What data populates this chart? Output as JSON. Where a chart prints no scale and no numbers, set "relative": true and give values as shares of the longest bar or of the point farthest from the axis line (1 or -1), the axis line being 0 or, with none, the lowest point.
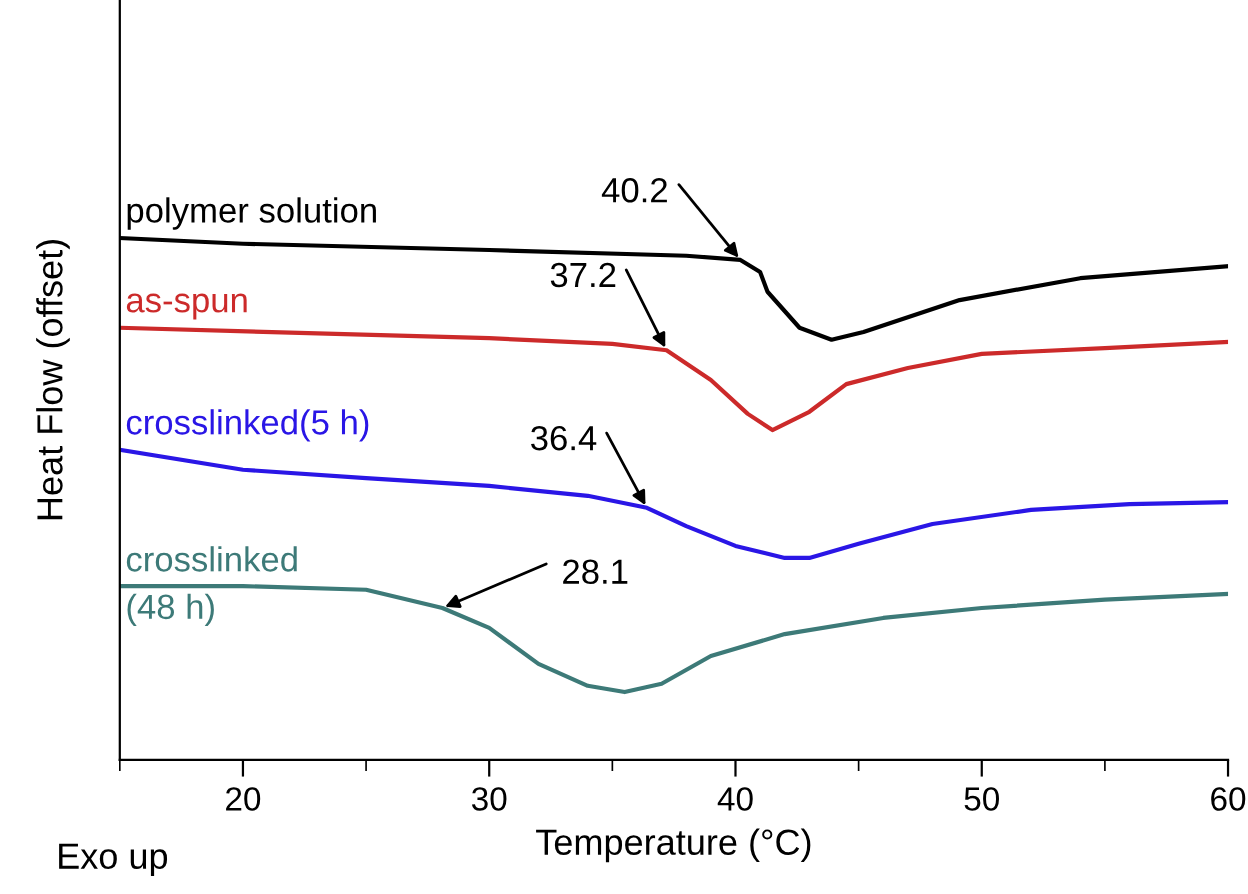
{
  "chart_data": {
    "type": "line",
    "relative": true,
    "xlabel": "Temperature (°C)",
    "ylabel": "Heat Flow (offset)",
    "xlim": [
      15,
      60
    ],
    "xticks": [
      {
        "value": 15,
        "label": null
      },
      20,
      {
        "value": 25,
        "label": null
      },
      30,
      {
        "value": 35,
        "label": null
      },
      40,
      {
        "value": 45,
        "label": null
      },
      50,
      {
        "value": 55,
        "label": null
      },
      60
    ],
    "grid": false,
    "legend": false,
    "marker": "none",
    "line_style": "solid",
    "series": [
      {
        "name": "polymer solution",
        "color": "#000000",
        "x": [
          15,
          20,
          30,
          38,
          40.2,
          41,
          41.3,
          42.6,
          43.9,
          45.2,
          49.1,
          54,
          60
        ],
        "values": [
          1.0,
          0.989,
          0.977,
          0.966,
          0.958,
          0.935,
          0.897,
          0.828,
          0.805,
          0.82,
          0.881,
          0.923,
          0.946
        ]
      },
      {
        "name": "as-spun",
        "color": "#cc2a2a",
        "x": [
          15,
          30,
          35,
          37.2,
          39,
          40.5,
          41.5,
          43,
          44.5,
          47,
          50,
          55,
          60
        ],
        "values": [
          0.828,
          0.808,
          0.797,
          0.785,
          0.728,
          0.663,
          0.632,
          0.667,
          0.72,
          0.751,
          0.778,
          0.789,
          0.801
        ]
      },
      {
        "name": "crosslinked(5 h)",
        "color": "#2a16e6",
        "x": [
          15,
          20,
          25,
          30,
          34,
          36.4,
          38,
          40,
          42,
          43,
          45,
          48,
          52,
          56,
          60
        ],
        "values": [
          0.594,
          0.556,
          0.54,
          0.525,
          0.506,
          0.483,
          0.448,
          0.41,
          0.387,
          0.387,
          0.414,
          0.452,
          0.479,
          0.49,
          0.494
        ]
      },
      {
        "name": "crosslinked\n(48 h)",
        "color": "#3d7a78",
        "x": [
          15,
          20,
          25,
          28.1,
          30,
          32,
          34,
          35.5,
          37,
          39,
          42,
          46,
          50,
          55,
          60
        ],
        "values": [
          0.333,
          0.333,
          0.326,
          0.291,
          0.253,
          0.184,
          0.142,
          0.13,
          0.146,
          0.199,
          0.241,
          0.272,
          0.291,
          0.307,
          0.318
        ]
      }
    ],
    "annotations": [
      {
        "text": "40.2",
        "x": 40.2,
        "y": 0.958
      },
      {
        "text": "37.2",
        "x": 37.2,
        "y": 0.785
      },
      {
        "text": "36.4",
        "x": 36.4,
        "y": 0.483
      },
      {
        "text": "28.1",
        "x": 28.1,
        "y": 0.291
      },
      "Exo up"
    ]
  }
}
